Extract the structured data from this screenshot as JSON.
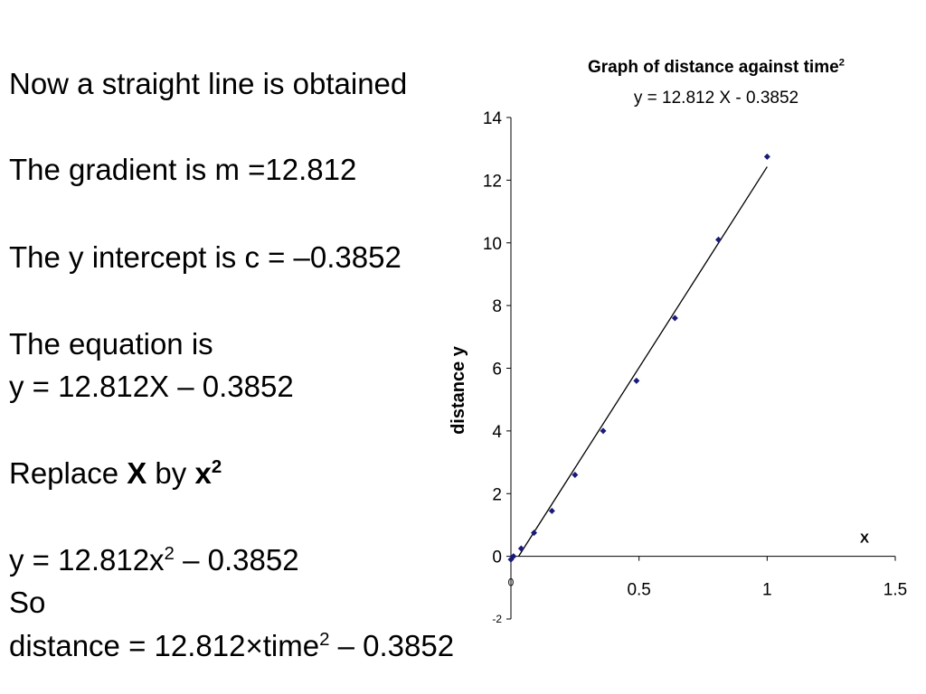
{
  "notes": {
    "line1": "Now a straight line is obtained",
    "line2": "The gradient is m =12.812",
    "line3": "The y intercept is c = –0.3852",
    "line4a": "The equation is",
    "line4b": "y = 12.812X – 0.3852",
    "line5_pre": "Replace ",
    "line5_X": "X",
    "line5_mid": " by ",
    "line5_x": "x",
    "line5_sup": "2",
    "line6_pre": "y = 12.812x",
    "line6_sup": "2",
    "line6_post": " – 0.3852",
    "line7": "So",
    "line8_pre": "distance = 12.812×time",
    "line8_sup": "2",
    "line8_post": " – 0.3852"
  },
  "chart_data": {
    "type": "scatter",
    "title": "Graph of distance against time",
    "title_sup": "2",
    "subtitle": "y = 12.812 X - 0.3852",
    "xlabel": "X",
    "ylabel": "distance y",
    "xlim": [
      0,
      1.5
    ],
    "ylim": [
      -2,
      14
    ],
    "x_ticks": [
      0,
      0.5,
      1,
      1.5
    ],
    "x_tick_labels": [
      "0",
      "0.5",
      "1",
      "1.5"
    ],
    "y_ticks": [
      -2,
      0,
      2,
      4,
      6,
      8,
      10,
      12,
      14
    ],
    "y_tick_labels": [
      "-2",
      "0",
      "2",
      "4",
      "6",
      "8",
      "10",
      "12",
      "14"
    ],
    "grid": false,
    "marker_color": "#1a1a7a",
    "line_color": "#000000",
    "points": {
      "x": [
        0.0,
        0.01,
        0.04,
        0.09,
        0.16,
        0.25,
        0.36,
        0.49,
        0.64,
        0.81,
        1.0
      ],
      "y": [
        -0.1,
        0.0,
        0.25,
        0.75,
        1.45,
        2.6,
        4.0,
        5.6,
        7.6,
        10.1,
        12.75
      ]
    },
    "trendline": {
      "slope": 12.812,
      "intercept": -0.3852,
      "x_range": [
        0.03,
        1.0
      ]
    }
  }
}
